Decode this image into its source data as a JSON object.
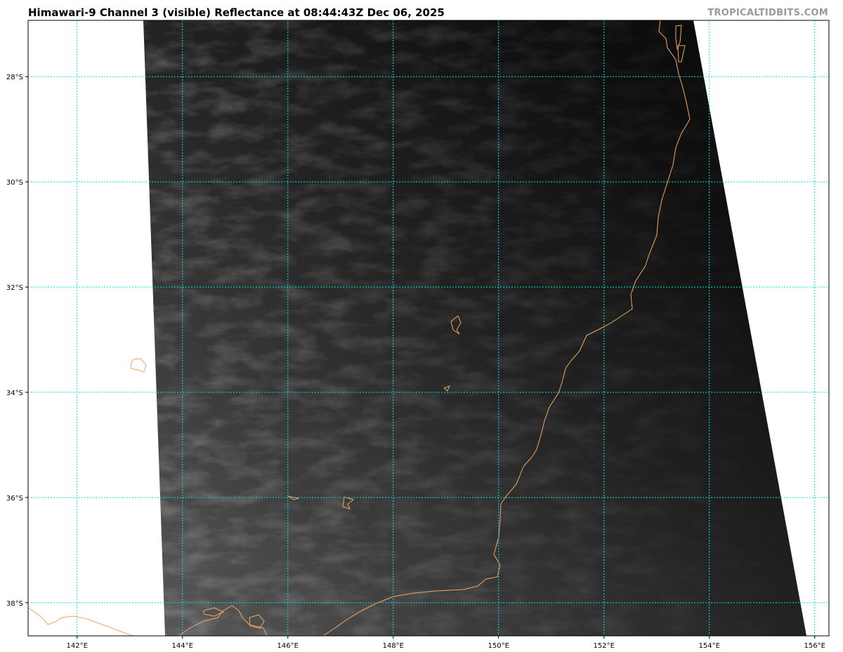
{
  "header": {
    "title": "Himawari-9 Channel 3 (visible) Reflectance at 08:44:43Z Dec 06, 2025",
    "credit": "TROPICALTIDBITS.COM"
  },
  "map": {
    "satellite": "Himawari-9",
    "channel": "Channel 3 (visible)",
    "product": "Reflectance",
    "lon_range": [
      141.07,
      156.27
    ],
    "lat_range": [
      -38.63,
      -26.93
    ],
    "lon_ticks": [
      {
        "value": 142,
        "label": "142°E"
      },
      {
        "value": 144,
        "label": "144°E"
      },
      {
        "value": 146,
        "label": "146°E"
      },
      {
        "value": 148,
        "label": "148°E"
      },
      {
        "value": 150,
        "label": "150°E"
      },
      {
        "value": 152,
        "label": "152°E"
      },
      {
        "value": 154,
        "label": "154°E"
      },
      {
        "value": 156,
        "label": "156°E"
      }
    ],
    "lat_ticks": [
      {
        "value": -28,
        "label": "28°S"
      },
      {
        "value": -30,
        "label": "30°S"
      },
      {
        "value": -32,
        "label": "32°S"
      },
      {
        "value": -34,
        "label": "34°S"
      },
      {
        "value": -36,
        "label": "36°S"
      },
      {
        "value": -38,
        "label": "38°S"
      }
    ],
    "gridline_color": "#00e5e5",
    "coastline_color": "#f0a860",
    "background_color": "#ffffff"
  }
}
